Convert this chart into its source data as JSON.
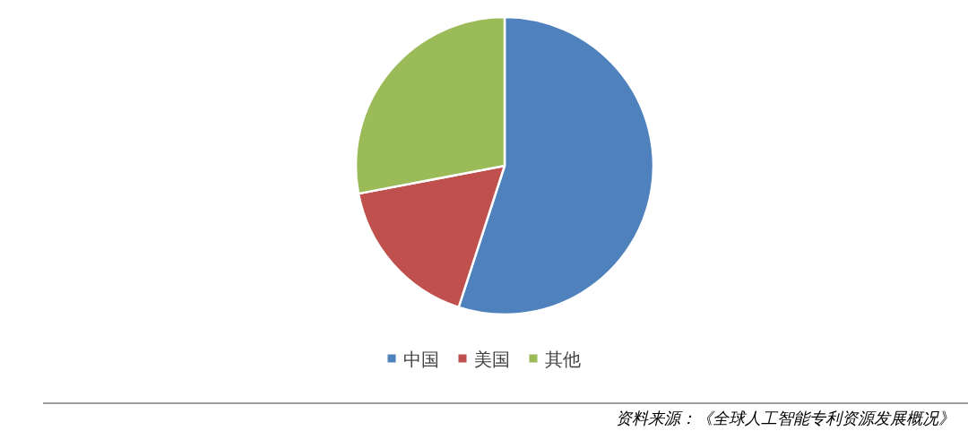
{
  "chart_data": {
    "type": "pie",
    "categories": [
      "中国",
      "美国",
      "其他"
    ],
    "values": [
      55,
      17,
      28
    ],
    "colors": [
      "#4f81bd",
      "#c0504d",
      "#9bbb59"
    ],
    "legend": "bottom",
    "annotations": [
      "资料来源：《全球人工智能专利资源发展概况》"
    ]
  }
}
